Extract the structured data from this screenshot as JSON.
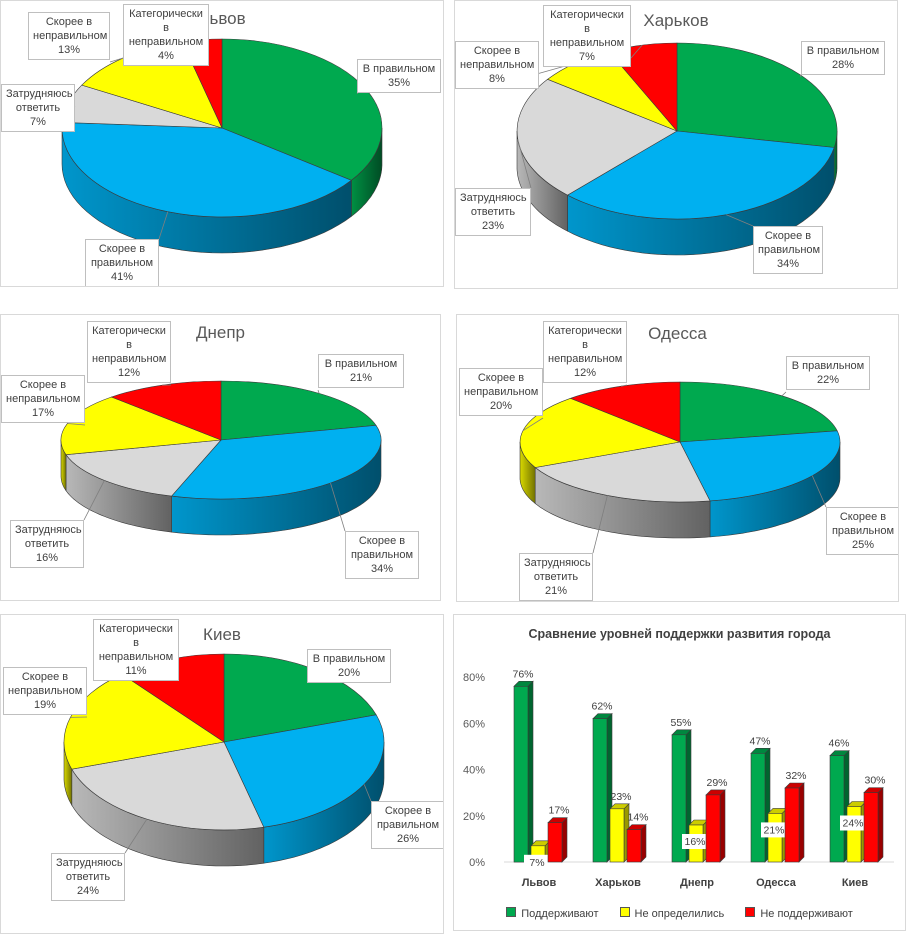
{
  "colors": {
    "v_pravilnom": "#00a94f",
    "skoree_v_pravilnom": "#00b0f0",
    "zatrudnyayus": "#d9d9d9",
    "skoree_v_nepravilnom": "#ffff00",
    "kategoricheski": "#ff0000",
    "podderzhivayut": "#00a94f",
    "ne_opredelilis": "#ffff00",
    "ne_podderzhivayut": "#ff0000"
  },
  "chart_data": [
    {
      "type": "pie",
      "title": "Львов",
      "slices": [
        {
          "key": "v_pravilnom",
          "label": [
            "В правильном",
            "35%"
          ],
          "value": 35
        },
        {
          "key": "skoree_v_pravilnom",
          "label": [
            "Скорее в",
            "правильном",
            "41%"
          ],
          "value": 41
        },
        {
          "key": "zatrudnyayus",
          "label": [
            "Затрудняюсь",
            "ответить",
            "7%"
          ],
          "value": 7
        },
        {
          "key": "skoree_v_nepravilnom",
          "label": [
            "Скорее в",
            "неправильном",
            "13%"
          ],
          "value": 13
        },
        {
          "key": "kategoricheski",
          "label": [
            "Категорически",
            "в",
            "неправильном",
            "4%"
          ],
          "value": 4
        }
      ]
    },
    {
      "type": "pie",
      "title": "Харьков",
      "slices": [
        {
          "key": "v_pravilnom",
          "label": [
            "В правильном",
            "28%"
          ],
          "value": 28
        },
        {
          "key": "skoree_v_pravilnom",
          "label": [
            "Скорее в",
            "правильном",
            "34%"
          ],
          "value": 34
        },
        {
          "key": "zatrudnyayus",
          "label": [
            "Затрудняюсь",
            "ответить",
            "23%"
          ],
          "value": 23
        },
        {
          "key": "skoree_v_nepravilnom",
          "label": [
            "Скорее в",
            "неправильном",
            "8%"
          ],
          "value": 8
        },
        {
          "key": "kategoricheski",
          "label": [
            "Категорически",
            "в",
            "неправильном",
            "7%"
          ],
          "value": 7
        }
      ]
    },
    {
      "type": "pie",
      "title": "Днепр",
      "slices": [
        {
          "key": "v_pravilnom",
          "label": [
            "В правильном",
            "21%"
          ],
          "value": 21
        },
        {
          "key": "skoree_v_pravilnom",
          "label": [
            "Скорее в",
            "правильном",
            "34%"
          ],
          "value": 34
        },
        {
          "key": "zatrudnyayus",
          "label": [
            "Затрудняюсь",
            "ответить",
            "16%"
          ],
          "value": 16
        },
        {
          "key": "skoree_v_nepravilnom",
          "label": [
            "Скорее в",
            "неправильном",
            "17%"
          ],
          "value": 17
        },
        {
          "key": "kategoricheski",
          "label": [
            "Категорически",
            "в",
            "неправильном",
            "12%"
          ],
          "value": 12
        }
      ]
    },
    {
      "type": "pie",
      "title": "Одесса",
      "slices": [
        {
          "key": "v_pravilnom",
          "label": [
            "В правильном",
            "22%"
          ],
          "value": 22
        },
        {
          "key": "skoree_v_pravilnom",
          "label": [
            "Скорее в",
            "правильном",
            "25%"
          ],
          "value": 25
        },
        {
          "key": "zatrudnyayus",
          "label": [
            "Затрудняюсь",
            "ответить",
            "21%"
          ],
          "value": 21
        },
        {
          "key": "skoree_v_nepravilnom",
          "label": [
            "Скорее в",
            "неправильном",
            "20%"
          ],
          "value": 20
        },
        {
          "key": "kategoricheski",
          "label": [
            "Категорически",
            "в",
            "неправильном",
            "12%"
          ],
          "value": 12
        }
      ]
    },
    {
      "type": "pie",
      "title": "Киев",
      "slices": [
        {
          "key": "v_pravilnom",
          "label": [
            "В правильном",
            "20%"
          ],
          "value": 20
        },
        {
          "key": "skoree_v_pravilnom",
          "label": [
            "Скорее в",
            "правильном",
            "26%"
          ],
          "value": 26
        },
        {
          "key": "zatrudnyayus",
          "label": [
            "Затрудняюсь",
            "ответить",
            "24%"
          ],
          "value": 24
        },
        {
          "key": "skoree_v_nepravilnom",
          "label": [
            "Скорее в",
            "неправильном",
            "19%"
          ],
          "value": 19
        },
        {
          "key": "kategoricheski",
          "label": [
            "Категорически",
            "в",
            "неправильном",
            "11%"
          ],
          "value": 11
        }
      ]
    },
    {
      "type": "bar",
      "title": "Сравнение уровней поддержки развития города",
      "categories": [
        "Львов",
        "Харьков",
        "Днепр",
        "Одесса",
        "Киев"
      ],
      "series": [
        {
          "key": "podderzhivayut",
          "name": "Поддерживают",
          "values": [
            76,
            62,
            55,
            47,
            46
          ],
          "labels": [
            "76%",
            "62%",
            "55%",
            "47%",
            "46%"
          ]
        },
        {
          "key": "ne_opredelilis",
          "name": "Не определились",
          "values": [
            7,
            23,
            16,
            21,
            24
          ],
          "labels": [
            "7%",
            "23%",
            "16%",
            "21%",
            "24%"
          ]
        },
        {
          "key": "ne_podderzhivayut",
          "name": "Не поддерживают",
          "values": [
            17,
            14,
            29,
            32,
            30
          ],
          "labels": [
            "17%",
            "14%",
            "29%",
            "32%",
            "30%"
          ]
        }
      ],
      "yticks": [
        "0%",
        "20%",
        "40%",
        "60%",
        "80%"
      ],
      "ylim": [
        0,
        80
      ],
      "legend": "bottom"
    }
  ]
}
